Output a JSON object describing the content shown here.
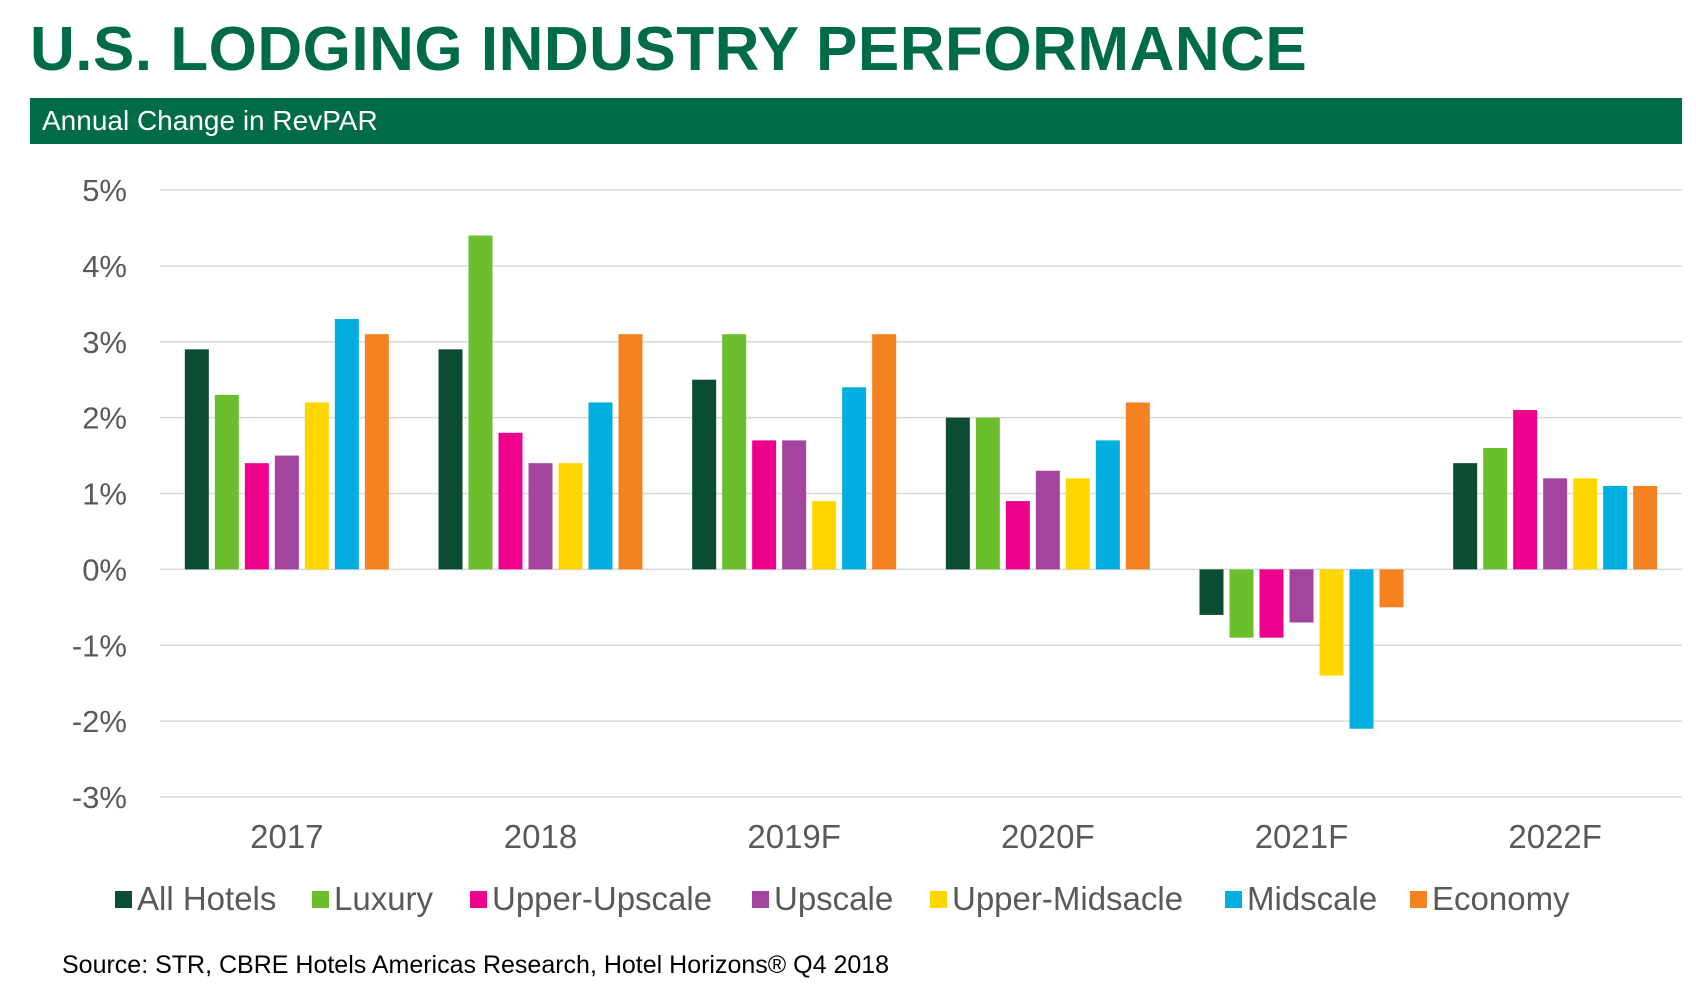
{
  "header": {
    "title": "U.S. LODGING INDUSTRY PERFORMANCE",
    "subtitle": "Annual Change in RevPAR",
    "title_color": "#006b48",
    "bar_color": "#006b48"
  },
  "footer": {
    "source": "Source: STR, CBRE Hotels Americas Research, Hotel Horizons® Q4 2018"
  },
  "chart_data": {
    "type": "bar",
    "title": "Annual Change in RevPAR",
    "xlabel": "",
    "ylabel": "",
    "ylim": [
      -3,
      5
    ],
    "y_ticks": [
      5,
      4,
      3,
      2,
      1,
      0,
      -1,
      -2,
      -3
    ],
    "y_tick_labels": [
      "5%",
      "4%",
      "3%",
      "2%",
      "1%",
      "0%",
      "-1%",
      "-2%",
      "-3%"
    ],
    "grid": true,
    "legend_position": "bottom",
    "categories": [
      "2017",
      "2018",
      "2019F",
      "2020F",
      "2021F",
      "2022F"
    ],
    "series": [
      {
        "name": "All Hotels",
        "color": "#0b4d33",
        "values": [
          2.9,
          2.9,
          2.5,
          2.0,
          -0.6,
          1.4
        ]
      },
      {
        "name": "Luxury",
        "color": "#6cbf2c",
        "values": [
          2.3,
          4.4,
          3.1,
          2.0,
          -0.9,
          1.6
        ]
      },
      {
        "name": "Upper-Upscale",
        "color": "#ec008c",
        "values": [
          1.4,
          1.8,
          1.7,
          0.9,
          -0.9,
          2.1
        ]
      },
      {
        "name": "Upscale",
        "color": "#a3449e",
        "values": [
          1.5,
          1.4,
          1.7,
          1.3,
          -0.7,
          1.2
        ]
      },
      {
        "name": "Upper-Midsacle",
        "color": "#ffd700",
        "values": [
          2.2,
          1.4,
          0.9,
          1.2,
          -1.4,
          1.2
        ]
      },
      {
        "name": "Midscale",
        "color": "#00aee0",
        "values": [
          3.3,
          2.2,
          2.4,
          1.7,
          -2.1,
          1.1
        ]
      },
      {
        "name": "Economy",
        "color": "#f58220",
        "values": [
          3.1,
          3.1,
          3.1,
          2.2,
          -0.5,
          1.1
        ]
      }
    ]
  }
}
